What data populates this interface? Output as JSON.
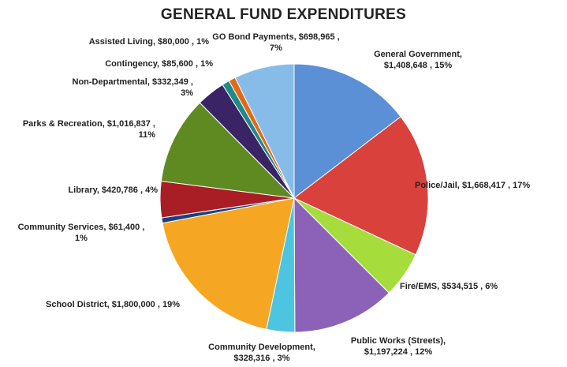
{
  "chart_data": {
    "type": "pie",
    "title": "GENERAL FUND EXPENDITURES",
    "slices": [
      {
        "label": "General Government,",
        "amount": "$1,408,648",
        "percent": "15%",
        "value": 1408648,
        "color": "#5b8fd6"
      },
      {
        "label": "Police/Jail,",
        "amount": "$1,668,417",
        "percent": "17%",
        "value": 1668417,
        "color": "#d9413c"
      },
      {
        "label": "Fire/EMS,",
        "amount": "$534,515",
        "percent": "6%",
        "value": 534515,
        "color": "#a6dc3c"
      },
      {
        "label": "Public Works (Streets),",
        "amount": "$1,197,224",
        "percent": "12%",
        "value": 1197224,
        "color": "#8b62b8"
      },
      {
        "label": "Community Development,",
        "amount": "$328,316",
        "percent": "3%",
        "value": 328316,
        "color": "#4dc4e0"
      },
      {
        "label": "School District,",
        "amount": "$1,800,000",
        "percent": "19%",
        "value": 1800000,
        "color": "#f5a623"
      },
      {
        "label": "Community Services,",
        "amount": "$61,400",
        "percent": "1%",
        "value": 61400,
        "color": "#1f3f7a"
      },
      {
        "label": "Library,",
        "amount": "$420,786",
        "percent": "4%",
        "value": 420786,
        "color": "#a81e24"
      },
      {
        "label": "Parks & Recreation,",
        "amount": "$1,016,837",
        "percent": "11%",
        "value": 1016837,
        "color": "#5f8a22"
      },
      {
        "label": "Non-Departmental,",
        "amount": "$332,349",
        "percent": "3%",
        "value": 332349,
        "color": "#3a2466"
      },
      {
        "label": "Contingency,",
        "amount": "$85,600",
        "percent": "1%",
        "value": 85600,
        "color": "#1e8a8a"
      },
      {
        "label": "Assisted Living,",
        "amount": "$80,000",
        "percent": "1%",
        "value": 80000,
        "color": "#e06a1a"
      },
      {
        "label": "GO Bond Payments,",
        "amount": "$698,965",
        "percent": "7%",
        "value": 698965,
        "color": "#88bce8"
      }
    ]
  }
}
